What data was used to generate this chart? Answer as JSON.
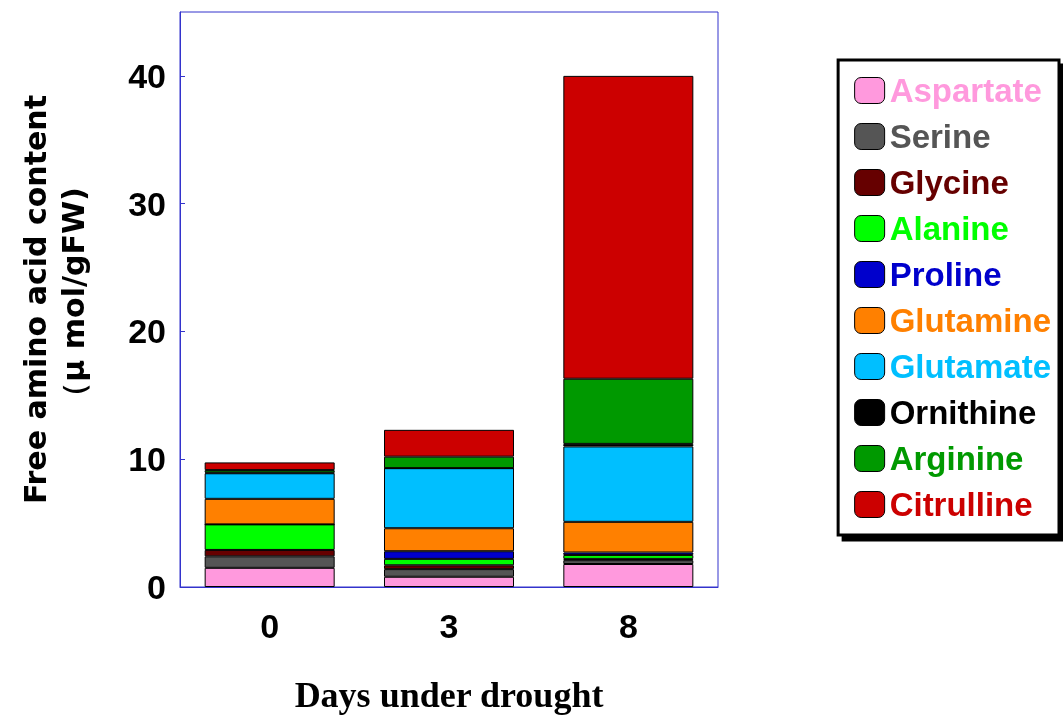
{
  "chart_data": {
    "type": "bar",
    "stacked": true,
    "xlabel": "Days under drought",
    "ylabel": "Free amino acid content\n（μ mol/gFW)",
    "categories": [
      "0",
      "3",
      "8"
    ],
    "ylim": [
      0,
      45
    ],
    "yticks": [
      0,
      10,
      20,
      30,
      40
    ],
    "grid": false,
    "legend": "right",
    "series": [
      {
        "name": "Aspartate",
        "color": "#ff99dd",
        "values": [
          1.5,
          0.8,
          1.8
        ]
      },
      {
        "name": "Serine",
        "color": "#555555",
        "values": [
          0.9,
          0.6,
          0.3
        ]
      },
      {
        "name": "Glycine",
        "color": "#660000",
        "values": [
          0.5,
          0.3,
          0.1
        ]
      },
      {
        "name": "Alanine",
        "color": "#00ff00",
        "values": [
          2.0,
          0.5,
          0.3
        ]
      },
      {
        "name": "Proline",
        "color": "#0000cc",
        "values": [
          0,
          0.6,
          0.2
        ]
      },
      {
        "name": "Glutamine",
        "color": "#ff8000",
        "values": [
          2.0,
          1.8,
          2.4
        ]
      },
      {
        "name": "Glutamate",
        "color": "#00bfff",
        "values": [
          2.0,
          4.7,
          5.9
        ]
      },
      {
        "name": "Ornithine",
        "color": "#000000",
        "values": [
          0.05,
          0,
          0.2
        ]
      },
      {
        "name": "Arginine",
        "color": "#009900",
        "values": [
          0.2,
          0.9,
          5.1
        ]
      },
      {
        "name": "Citrulline",
        "color": "#cc0000",
        "values": [
          0.6,
          2.1,
          23.7
        ]
      }
    ]
  }
}
